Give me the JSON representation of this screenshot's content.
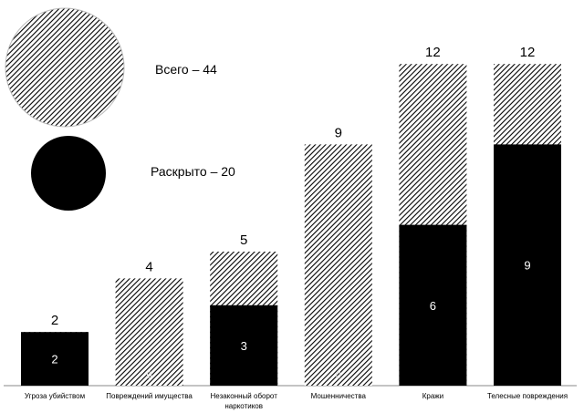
{
  "chart_data": {
    "type": "bar",
    "categories": [
      "Угроза убийством",
      "Повреждений имущества",
      "Незаконный оборот наркотиков",
      "Мошенничества",
      "Кражи",
      "Телесные повреждения"
    ],
    "series": [
      {
        "name": "Всего",
        "values": [
          2,
          4,
          5,
          9,
          12,
          12
        ]
      },
      {
        "name": "Раскрыто",
        "values": [
          2,
          0,
          3,
          0,
          6,
          9
        ]
      }
    ],
    "ylim": [
      0,
      12
    ],
    "grid": false,
    "legend": {
      "placement": "top-left",
      "items": [
        {
          "label": "Всего – 44",
          "pattern": "hatched"
        },
        {
          "label": "Раскрыто – 20",
          "pattern": "solid"
        }
      ]
    },
    "colors": {
      "solved": "#000000",
      "total_hatch": "#000000",
      "background": "#ffffff"
    }
  }
}
